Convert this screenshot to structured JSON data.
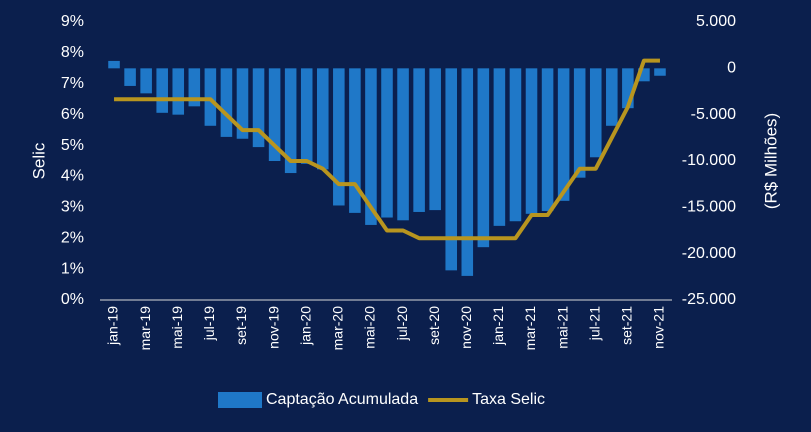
{
  "chart_data": {
    "type": "bar-line",
    "y_title": "Selic",
    "y2_title": "(R$ Milhões)",
    "categories": [
      "jan-19",
      null,
      "mar-19",
      null,
      "mai-19",
      null,
      "jul-19",
      null,
      "set-19",
      null,
      "nov-19",
      null,
      "jan-20",
      null,
      "mar-20",
      null,
      "mai-20",
      null,
      "jul-20",
      null,
      "set-20",
      null,
      "nov-20",
      null,
      "jan-21",
      null,
      "mar-21",
      null,
      "mai-21",
      null,
      "jul-21",
      null,
      "set-21",
      null,
      "nov-21"
    ],
    "series": [
      {
        "name": "Captação Acumulada",
        "type": "bar",
        "axis": "y2",
        "color": "#1f78c8",
        "values": [
          800,
          -1900,
          -2700,
          -4800,
          -5000,
          -4100,
          -6200,
          -7400,
          -7600,
          -8500,
          -10000,
          -11300,
          -10300,
          -10900,
          -14800,
          -15600,
          -16900,
          -16100,
          -16400,
          -15500,
          -15300,
          -21800,
          -22400,
          -19300,
          -17000,
          -16500,
          -15700,
          -15400,
          -14300,
          -11800,
          -9600,
          -6200,
          -4300,
          -1400,
          -800
        ]
      },
      {
        "name": "Taxa Selic",
        "type": "line",
        "color": "#b8951f",
        "values": [
          6.5,
          6.5,
          6.5,
          6.5,
          6.5,
          6.5,
          6.5,
          6.0,
          5.5,
          5.5,
          5.0,
          4.5,
          4.5,
          4.25,
          3.75,
          3.75,
          3.0,
          2.25,
          2.25,
          2.0,
          2.0,
          2.0,
          2.0,
          2.0,
          2.0,
          2.0,
          2.75,
          2.75,
          3.5,
          4.25,
          4.25,
          5.25,
          6.25,
          7.75,
          7.75
        ]
      }
    ],
    "ylim": [
      0,
      9
    ],
    "yticks": [
      {
        "value": 0,
        "label": "0%"
      },
      {
        "value": 1,
        "label": "1%"
      },
      {
        "value": 2,
        "label": "2%"
      },
      {
        "value": 3,
        "label": "3%"
      },
      {
        "value": 4,
        "label": "4%"
      },
      {
        "value": 5,
        "label": "5%"
      },
      {
        "value": 6,
        "label": "6%"
      },
      {
        "value": 7,
        "label": "7%"
      },
      {
        "value": 8,
        "label": "8%"
      },
      {
        "value": 9,
        "label": "9%"
      }
    ],
    "y2lim": [
      -25000,
      5000
    ],
    "y2ticks": [
      {
        "value": 5000,
        "label": "5.000"
      },
      0,
      {
        "value": -5000,
        "label": "-5.000"
      },
      {
        "value": -10000,
        "label": "-10.000"
      },
      {
        "value": -15000,
        "label": "-15.000"
      },
      {
        "value": -20000,
        "label": "-20.000"
      },
      {
        "value": -25000,
        "label": "-25.000"
      }
    ],
    "legend": "bottom"
  }
}
